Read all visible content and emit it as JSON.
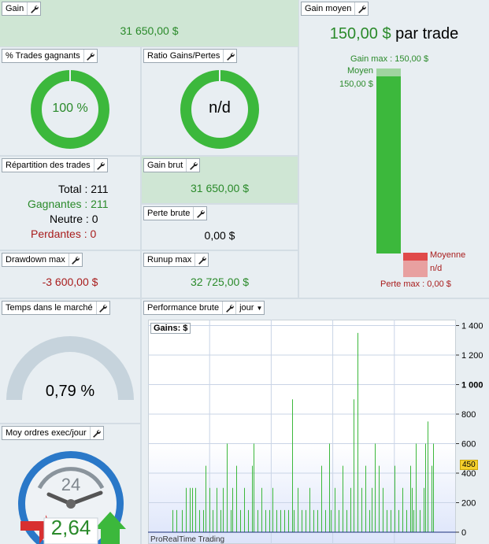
{
  "gain": {
    "title": "Gain",
    "value": "31 650,00 $"
  },
  "gain_moyen": {
    "title": "Gain moyen",
    "value": "150,00 $",
    "suffix": "par trade",
    "gain_max_label": "Gain max : 150,00 $",
    "moyen_label": "Moyen",
    "moyen_value": "150,00 $",
    "moyenne_label": "Moyenne",
    "moyenne_value": "n/d",
    "perte_max_label": "Perte max : 0,00 $"
  },
  "pct_trades": {
    "title": "% Trades gagnants",
    "value": "100 %",
    "fraction": 1.0
  },
  "ratio": {
    "title": "Ratio Gains/Pertes",
    "value": "n/d",
    "fraction": 1.0
  },
  "repartition": {
    "title": "Répartition des trades",
    "total_label": "Total : 211",
    "gagnantes_label": "Gagnantes : 211",
    "neutre_label": "Neutre : 0",
    "perdantes_label": "Perdantes : 0"
  },
  "gain_brut": {
    "title": "Gain brut",
    "value": "31 650,00 $"
  },
  "perte_brute": {
    "title": "Perte brute",
    "value": "0,00 $"
  },
  "drawdown": {
    "title": "Drawdown max",
    "value": "-3 600,00 $"
  },
  "runup": {
    "title": "Runup max",
    "value": "32 725,00 $"
  },
  "temps": {
    "title": "Temps dans le marché",
    "value": "0,79 %",
    "fraction": 0.0079
  },
  "ordres": {
    "title": "Moy ordres exec/jour",
    "clock_number": "24",
    "value": "2,64"
  },
  "perf": {
    "title": "Performance brute",
    "period": "jour",
    "legend": "Gains: $",
    "watermark": "ProRealTime Trading",
    "current_marker": "450"
  },
  "colors": {
    "green": "#3cb83c",
    "red": "#a81c1c",
    "panel": "#e8eef2",
    "accent_green_panel": "#cfe6d4"
  },
  "chart_data": {
    "type": "bar",
    "ylim": [
      -80,
      1440
    ],
    "y_ticks": [
      0,
      200,
      400,
      600,
      800,
      1000,
      1200,
      1400
    ],
    "y_tick_labels": [
      "0",
      "200",
      "400",
      "600",
      "800",
      "1 000",
      "1 200",
      "1 400"
    ],
    "series": [
      {
        "values": [
          150,
          0,
          150,
          0,
          0,
          150,
          0,
          300,
          0,
          300,
          300,
          0,
          300,
          0,
          150,
          0,
          150,
          450,
          0,
          300,
          0,
          150,
          0,
          300,
          0,
          150,
          300,
          0,
          600,
          0,
          150,
          300,
          0,
          450,
          0,
          150,
          0,
          300,
          0,
          150,
          0,
          450,
          600,
          0,
          150,
          0,
          300,
          0,
          150,
          0,
          150,
          0,
          300,
          0,
          150,
          0,
          150,
          0,
          150,
          0,
          150,
          0,
          900,
          150,
          0,
          300,
          0,
          150,
          0,
          150,
          0,
          300,
          0,
          150,
          0,
          150,
          0,
          450,
          0,
          150,
          0,
          600,
          150,
          0,
          300,
          0,
          150,
          0,
          450,
          0,
          150,
          0,
          300,
          0,
          900,
          0,
          1350,
          0,
          300,
          0,
          450,
          0,
          150,
          300,
          0,
          600,
          0,
          450,
          0,
          300,
          0,
          150,
          0,
          150,
          0,
          450,
          0,
          150,
          0,
          300,
          0,
          150,
          0,
          450,
          300,
          150,
          600,
          0,
          150,
          0,
          300,
          600,
          750,
          0,
          450,
          600
        ]
      }
    ]
  }
}
